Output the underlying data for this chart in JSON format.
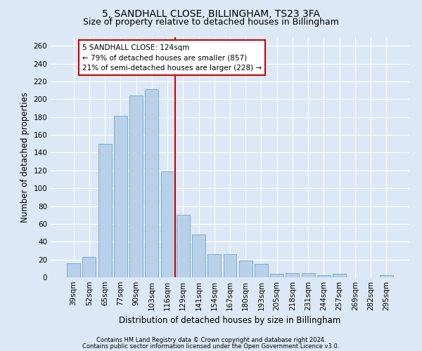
{
  "title1": "5, SANDHALL CLOSE, BILLINGHAM, TS23 3FA",
  "title2": "Size of property relative to detached houses in Billingham",
  "xlabel": "Distribution of detached houses by size in Billingham",
  "ylabel": "Number of detached properties",
  "categories": [
    "39sqm",
    "52sqm",
    "65sqm",
    "77sqm",
    "90sqm",
    "103sqm",
    "116sqm",
    "129sqm",
    "141sqm",
    "154sqm",
    "167sqm",
    "180sqm",
    "193sqm",
    "205sqm",
    "218sqm",
    "231sqm",
    "244sqm",
    "257sqm",
    "269sqm",
    "282sqm",
    "295sqm"
  ],
  "values": [
    16,
    23,
    150,
    181,
    204,
    211,
    119,
    70,
    48,
    26,
    26,
    19,
    15,
    4,
    5,
    5,
    2,
    4,
    0,
    0,
    2
  ],
  "bar_color": "#b8d0e8",
  "bar_edge_color": "#7aafd4",
  "vline_color": "#cc0000",
  "vline_bin_index": 6,
  "annotation_text1": "5 SANDHALL CLOSE: 124sqm",
  "annotation_text2": "← 79% of detached houses are smaller (857)",
  "annotation_text3": "21% of semi-detached houses are larger (228) →",
  "annotation_box_color": "#ffffff",
  "annotation_border_color": "#cc0000",
  "footer1": "Contains HM Land Registry data © Crown copyright and database right 2024.",
  "footer2": "Contains public sector information licensed under the Open Government Licence v3.0.",
  "ylim": [
    0,
    270
  ],
  "yticks": [
    0,
    20,
    40,
    60,
    80,
    100,
    120,
    140,
    160,
    180,
    200,
    220,
    240,
    260
  ],
  "bg_color": "#dce8f5",
  "plot_bg_color": "#dce8f5",
  "grid_color": "#ffffff",
  "title1_fontsize": 10,
  "title2_fontsize": 9,
  "xlabel_fontsize": 8.5,
  "ylabel_fontsize": 8.5,
  "tick_fontsize": 7.5,
  "annotation_fontsize": 7.5,
  "footer_fontsize": 6.0
}
